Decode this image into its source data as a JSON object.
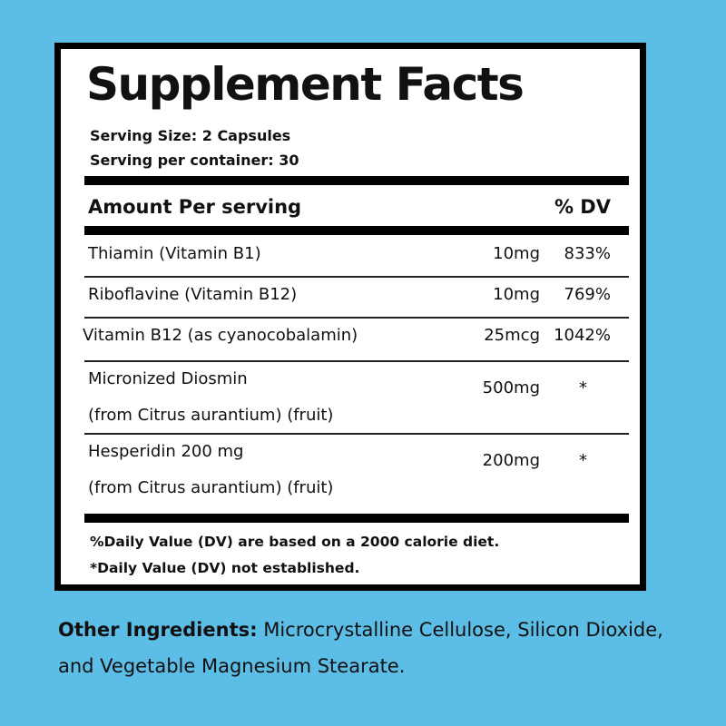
{
  "header": {
    "title": "Supplement Facts",
    "serving_size": "Serving Size: 2 Capsules",
    "servings_per_container": "Serving per container: 30"
  },
  "table": {
    "columns": [
      "Amount Per serving",
      "% DV"
    ],
    "rows": [
      {
        "name": [
          "Thiamin (Vitamin B1)"
        ],
        "amount": "10mg",
        "dv": "833%"
      },
      {
        "name": [
          "Riboflavine (Vitamin B12)"
        ],
        "amount": "10mg",
        "dv": "769%"
      },
      {
        "name": [
          "Vitamin B12 (as cyanocobalamin)"
        ],
        "amount": "25mcg",
        "dv": "1042%"
      },
      {
        "name": [
          "Micronized Diosmin",
          "(from Citrus aurantium) (fruit)"
        ],
        "amount": "500mg",
        "dv": "*"
      },
      {
        "name": [
          "Hesperidin 200 mg",
          "(from Citrus aurantium) (fruit)"
        ],
        "amount": "200mg",
        "dv": "*"
      }
    ]
  },
  "footnotes": [
    "%Daily Value (DV) are based on a 2000 calorie diet.",
    "*Daily Value (DV) not established."
  ],
  "other_ingredients": {
    "label": "Other Ingredients:",
    "text": "Microcrystalline Cellulose, Silicon Dioxide, and Vegetable Magnesium Stearate."
  }
}
